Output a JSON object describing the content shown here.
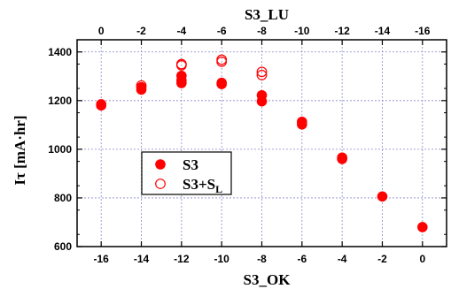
{
  "chart_data": {
    "type": "scatter",
    "title": "",
    "xlabel": "S3_OK",
    "x2label": "S3_LU",
    "ylabel": "Iτ [mA·hr]",
    "xlim": [
      -17.2,
      1.2
    ],
    "ylim": [
      600,
      1450
    ],
    "x_ticks": [
      -16,
      -14,
      -12,
      -10,
      -8,
      -6,
      -4,
      -2,
      0
    ],
    "x2_ticks": [
      0,
      -2,
      -4,
      -6,
      -8,
      -10,
      -12,
      -14,
      -16
    ],
    "y_ticks": [
      600,
      800,
      1000,
      1200,
      1400
    ],
    "grid": true,
    "legend_position": "center-left",
    "colors": {
      "series": "#ff0000",
      "grid": "#8888cc"
    },
    "series": [
      {
        "name": "S3",
        "marker": "filled-circle",
        "points": [
          [
            -16,
            1180
          ],
          [
            -16,
            1185
          ],
          [
            -14,
            1245
          ],
          [
            -14,
            1255
          ],
          [
            -12,
            1272
          ],
          [
            -12,
            1283
          ],
          [
            -12,
            1302
          ],
          [
            -10,
            1268
          ],
          [
            -10,
            1273
          ],
          [
            -8,
            1197
          ],
          [
            -8,
            1222
          ],
          [
            -6,
            1102
          ],
          [
            -6,
            1113
          ],
          [
            -4,
            960
          ],
          [
            -4,
            966
          ],
          [
            -2,
            806
          ],
          [
            0,
            680
          ]
        ]
      },
      {
        "name_main": "S3+S",
        "name_sub": "L",
        "marker": "open-circle",
        "points": [
          [
            -14,
            1262
          ],
          [
            -12,
            1345
          ],
          [
            -12,
            1350
          ],
          [
            -10,
            1360
          ],
          [
            -10,
            1368
          ],
          [
            -8,
            1305
          ],
          [
            -8,
            1318
          ]
        ]
      }
    ]
  }
}
